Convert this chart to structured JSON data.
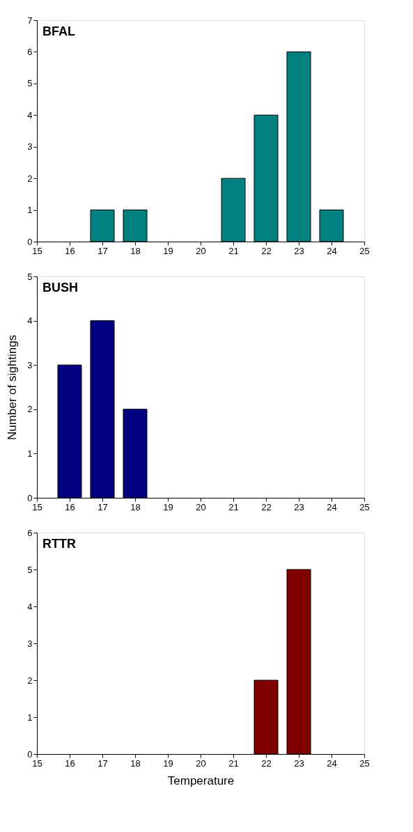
{
  "chart_data": [
    {
      "type": "bar",
      "title": "BFAL",
      "x": [
        17,
        18,
        21,
        22,
        23,
        24
      ],
      "values": [
        1,
        1,
        2,
        4,
        6,
        1
      ],
      "color": "#008080",
      "xlim": [
        15,
        25
      ],
      "xticks": [
        15,
        16,
        17,
        18,
        19,
        20,
        21,
        22,
        23,
        24,
        25
      ],
      "ylim": [
        0,
        7
      ],
      "yticks": [
        0,
        1,
        2,
        3,
        4,
        5,
        6,
        7
      ],
      "grid": false
    },
    {
      "type": "bar",
      "title": "BUSH",
      "ylabel": "Number of sightings",
      "x": [
        16,
        17,
        18
      ],
      "values": [
        3,
        4,
        2
      ],
      "color": "#000080",
      "xlim": [
        15,
        25
      ],
      "xticks": [
        15,
        16,
        17,
        18,
        19,
        20,
        21,
        22,
        23,
        24,
        25
      ],
      "ylim": [
        0,
        5
      ],
      "yticks": [
        0,
        1,
        2,
        3,
        4,
        5
      ],
      "grid": false
    },
    {
      "type": "bar",
      "title": "RTTR",
      "xlabel": "Temperature",
      "x": [
        22,
        23
      ],
      "values": [
        2,
        5
      ],
      "color": "#800000",
      "xlim": [
        15,
        25
      ],
      "xticks": [
        15,
        16,
        17,
        18,
        19,
        20,
        21,
        22,
        23,
        24,
        25
      ],
      "ylim": [
        0,
        6
      ],
      "yticks": [
        0,
        1,
        2,
        3,
        4,
        5,
        6
      ],
      "grid": false
    }
  ]
}
